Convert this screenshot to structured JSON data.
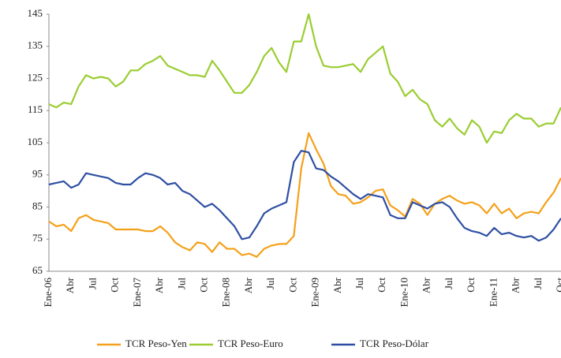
{
  "chart_data": {
    "type": "line",
    "categories": [
      "Ene-06",
      null,
      null,
      "Abr",
      null,
      null,
      "Jul",
      null,
      null,
      "Oct",
      null,
      null,
      "Ene-07",
      null,
      null,
      "Abr",
      null,
      null,
      "Jul",
      null,
      null,
      "Oct",
      null,
      null,
      "Ene-08",
      null,
      null,
      "Abr",
      null,
      null,
      "Jul",
      null,
      null,
      "Oct",
      null,
      null,
      "Ene-09",
      null,
      null,
      "Abr",
      null,
      null,
      "Jul",
      null,
      null,
      "Oct",
      null,
      null,
      "Ene-10",
      null,
      null,
      "Abr",
      null,
      null,
      "Jul",
      null,
      null,
      "Oct",
      null,
      null,
      "Ene-11",
      null,
      null,
      "Abr",
      null,
      null,
      "Jul",
      null,
      null,
      "Oct"
    ],
    "series": [
      {
        "name": "TCR Peso-Yen",
        "color": "#f5a01a",
        "values": [
          80.5,
          79,
          79.5,
          77.5,
          81.5,
          82.5,
          81,
          80.5,
          80,
          78,
          78,
          78,
          78,
          77.5,
          77.5,
          79,
          77,
          74,
          72.5,
          71.5,
          74,
          73.5,
          71,
          74,
          72,
          72,
          70,
          70.5,
          69.5,
          72,
          73,
          73.5,
          73.5,
          76,
          97,
          108,
          103,
          98.5,
          91.5,
          89,
          88.5,
          86,
          86.5,
          88,
          90,
          90.5,
          85.5,
          84,
          82,
          87.5,
          86,
          82.5,
          86,
          87.5,
          88.5,
          87,
          86,
          86.5,
          85.5,
          83,
          86,
          83,
          84.5,
          81.5,
          83,
          83.5,
          83,
          86.5,
          89.5,
          94
        ]
      },
      {
        "name": "TCR Peso-Euro",
        "color": "#9acd32",
        "values": [
          117,
          116,
          117.5,
          117,
          122.5,
          126,
          125,
          125.5,
          125,
          122.5,
          124,
          127.5,
          127.5,
          129.5,
          130.5,
          132,
          129,
          128,
          127,
          126,
          126,
          125.5,
          130.5,
          127.5,
          124,
          120.5,
          120.5,
          123,
          127,
          132,
          134.5,
          130,
          127,
          136.5,
          136.5,
          145,
          135,
          129,
          128.5,
          128.5,
          129,
          129.5,
          127,
          131,
          133,
          135,
          126.5,
          124,
          119.5,
          121.5,
          118.5,
          117,
          112,
          110,
          112.5,
          109.5,
          107.5,
          112,
          110,
          105,
          108.5,
          108,
          112,
          114,
          112.5,
          112.5,
          110,
          111,
          111,
          116
        ]
      },
      {
        "name": "TCR Peso-Dólar",
        "color": "#2e4fa3",
        "values": [
          92,
          92.5,
          93,
          91,
          92,
          95.5,
          95,
          94.5,
          94,
          92.5,
          92,
          92,
          94,
          95.5,
          95,
          94,
          92,
          92.5,
          90,
          89,
          87,
          85,
          86,
          84,
          81.5,
          79,
          75,
          75.5,
          79,
          83,
          84.5,
          85.5,
          86.5,
          99,
          102.5,
          102,
          97,
          96.5,
          94.5,
          93,
          91,
          89,
          87.5,
          89,
          88.5,
          88,
          82.5,
          81.5,
          81.5,
          86.5,
          85.5,
          84.5,
          86,
          86.5,
          85,
          81.5,
          78.5,
          77.5,
          77,
          76,
          78.5,
          76.5,
          77,
          76,
          75.5,
          76,
          74.5,
          75.5,
          78,
          81.5
        ]
      }
    ],
    "ylim": [
      65,
      145
    ],
    "yticks": [
      65,
      75,
      85,
      95,
      105,
      115,
      125,
      135,
      145
    ],
    "grid": false,
    "legend": "bottom"
  }
}
